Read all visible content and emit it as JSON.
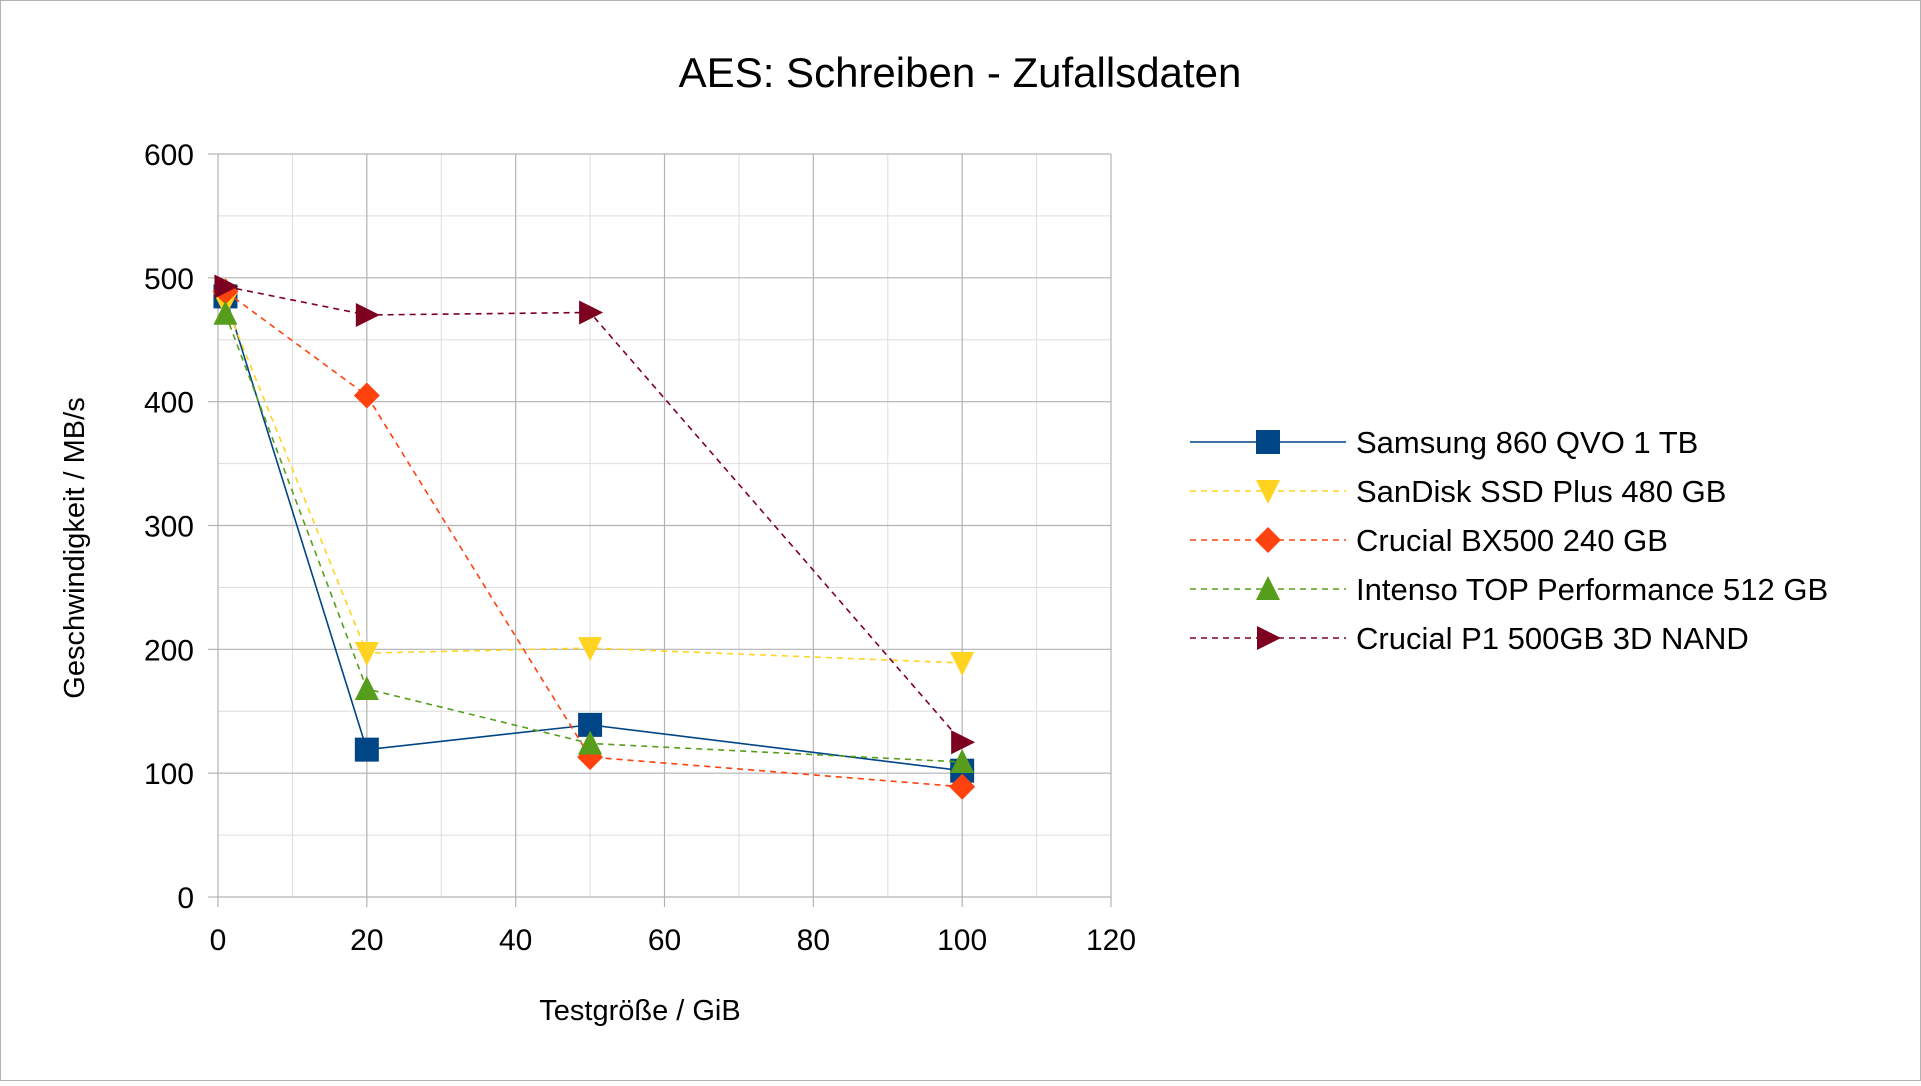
{
  "chart_data": {
    "type": "line",
    "title": "AES: Schreiben - Zufallsdaten",
    "xlabel": "Testgröße / GiB",
    "ylabel": "Geschwindigkeit / MB/s",
    "xlim": [
      0,
      120
    ],
    "ylim": [
      0,
      600
    ],
    "x_ticks": [
      0,
      20,
      40,
      60,
      80,
      100,
      120
    ],
    "y_ticks": [
      0,
      100,
      200,
      300,
      400,
      500,
      600
    ],
    "x_tick_labels": [
      "0",
      "20",
      "40",
      "60",
      "80",
      "100",
      "120"
    ],
    "y_tick_labels": [
      "0",
      "100",
      "200",
      "300",
      "400",
      "500",
      "600"
    ],
    "grid": true,
    "legend_position": "right",
    "series": [
      {
        "name": "Samsung 860 QVO 1 TB",
        "color": "#004586",
        "marker": "square",
        "dashed": false,
        "x": [
          1,
          20,
          50,
          100
        ],
        "y": [
          485,
          119,
          139,
          102
        ]
      },
      {
        "name": "SanDisk SSD Plus 480 GB",
        "color": "#ffd320",
        "marker": "triangle-down",
        "dashed": true,
        "x": [
          1,
          20,
          50,
          100
        ],
        "y": [
          479,
          197,
          201,
          189
        ]
      },
      {
        "name": "Crucial BX500 240 GB",
        "color": "#ff420e",
        "marker": "diamond",
        "dashed": true,
        "x": [
          1,
          20,
          50,
          100
        ],
        "y": [
          489,
          405,
          113,
          89
        ]
      },
      {
        "name": "Intenso  TOP Performance 512 GB",
        "color": "#579d1c",
        "marker": "triangle-up",
        "dashed": true,
        "x": [
          1,
          20,
          50,
          100
        ],
        "y": [
          471,
          168,
          124,
          109
        ]
      },
      {
        "name": "Crucial P1 500GB 3D NAND",
        "color": "#7e0021",
        "marker": "triangle-right",
        "dashed": true,
        "x": [
          1,
          20,
          50,
          100
        ],
        "y": [
          493,
          470,
          472,
          125
        ]
      }
    ]
  }
}
